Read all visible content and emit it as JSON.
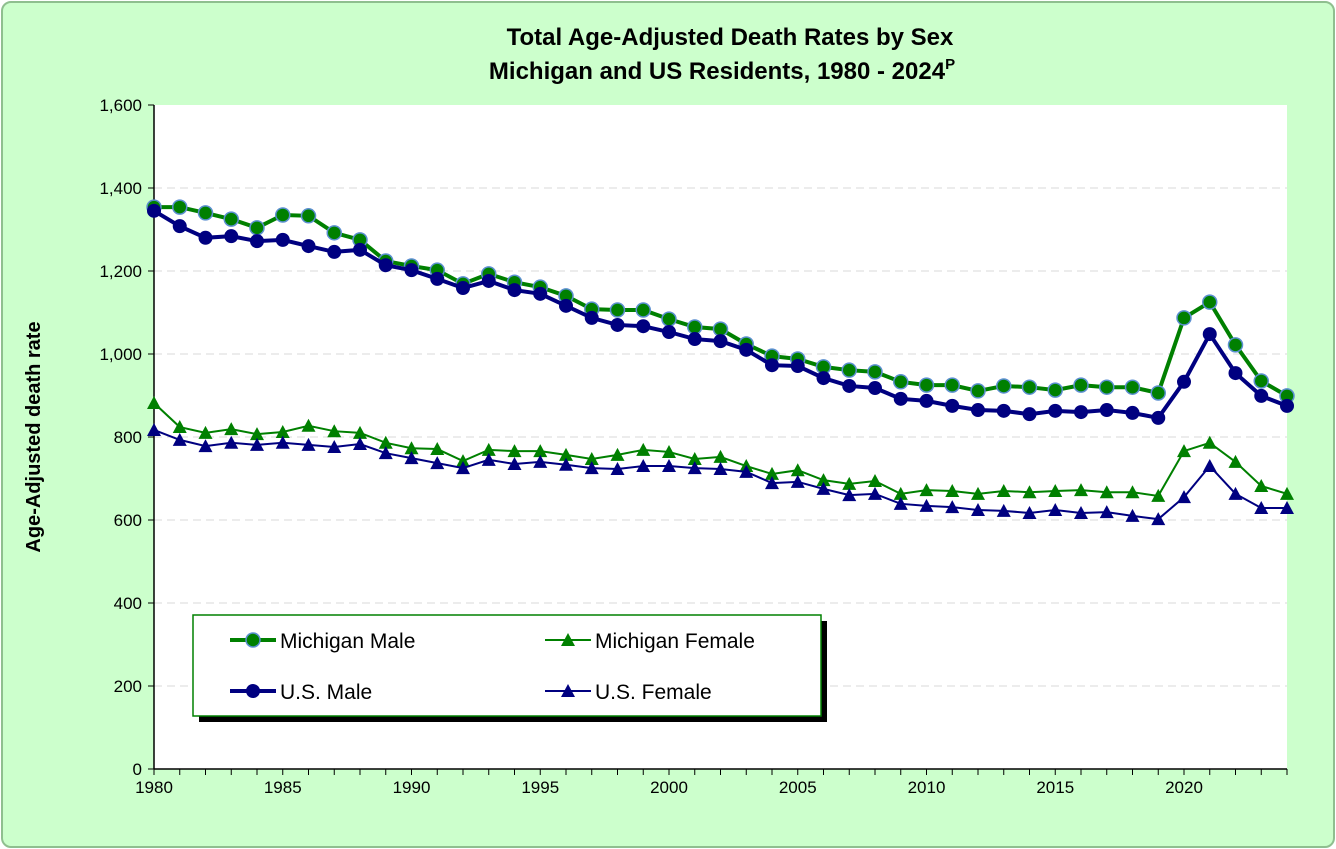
{
  "chart_data": {
    "type": "line",
    "title_line1": "Total Age-Adjusted Death Rates by Sex",
    "title_line2": "Michigan and US Residents, 1980 - 2024",
    "title_superscript": "P",
    "xlabel": "",
    "ylabel": "Age-Adjusted death rate",
    "xlim": [
      1980,
      2024
    ],
    "ylim": [
      0,
      1600
    ],
    "yticks": [
      "0",
      "200",
      "400",
      "600",
      "800",
      "1,000",
      "1,200",
      "1,400",
      "1,600"
    ],
    "xticks": [
      "1980",
      "1985",
      "1990",
      "1995",
      "2000",
      "2005",
      "2010",
      "2015",
      "2020"
    ],
    "grid": true,
    "legend_placement": "bottom-left",
    "x": [
      1980,
      1981,
      1982,
      1983,
      1984,
      1985,
      1986,
      1987,
      1988,
      1989,
      1990,
      1991,
      1992,
      1993,
      1994,
      1995,
      1996,
      1997,
      1998,
      1999,
      2000,
      2001,
      2002,
      2003,
      2004,
      2005,
      2006,
      2007,
      2008,
      2009,
      2010,
      2011,
      2012,
      2013,
      2014,
      2015,
      2016,
      2017,
      2018,
      2019,
      2020,
      2021,
      2022,
      2023,
      2024
    ],
    "series": [
      {
        "name": "Michigan Male",
        "color": "#008000",
        "marker": "circle",
        "values": [
          1354,
          1354,
          1340,
          1325,
          1304,
          1335,
          1333,
          1292,
          1275,
          1224,
          1212,
          1202,
          1169,
          1193,
          1173,
          1161,
          1140,
          1108,
          1106,
          1106,
          1084,
          1065,
          1060,
          1024,
          995,
          988,
          969,
          961,
          957,
          933,
          925,
          925,
          911,
          923,
          920,
          913,
          925,
          920,
          920,
          906,
          1087,
          1125,
          1022,
          935,
          899
        ]
      },
      {
        "name": "Michigan Female",
        "color": "#008000",
        "marker": "triangle",
        "values": [
          882,
          824,
          810,
          819,
          807,
          812,
          827,
          814,
          810,
          786,
          773,
          771,
          742,
          769,
          766,
          766,
          757,
          747,
          757,
          769,
          764,
          747,
          752,
          730,
          711,
          720,
          696,
          687,
          694,
          663,
          672,
          670,
          663,
          670,
          667,
          670,
          672,
          667,
          667,
          658,
          766,
          786,
          740,
          682,
          663
        ]
      },
      {
        "name": "U.S. Male",
        "color": "#000080",
        "marker": "circle",
        "values": [
          1345,
          1308,
          1280,
          1284,
          1272,
          1275,
          1260,
          1246,
          1251,
          1214,
          1202,
          1181,
          1159,
          1176,
          1154,
          1145,
          1116,
          1087,
          1070,
          1067,
          1053,
          1036,
          1031,
          1010,
          973,
          971,
          942,
          923,
          918,
          892,
          887,
          875,
          865,
          863,
          855,
          863,
          860,
          865,
          858,
          846,
          933,
          1048,
          954,
          899,
          875
        ]
      },
      {
        "name": "U.S. Female",
        "color": "#000080",
        "marker": "triangle",
        "values": [
          817,
          793,
          778,
          786,
          781,
          786,
          781,
          776,
          783,
          761,
          749,
          737,
          725,
          745,
          735,
          740,
          733,
          725,
          723,
          730,
          730,
          725,
          723,
          716,
          689,
          692,
          675,
          660,
          663,
          639,
          634,
          631,
          624,
          622,
          617,
          624,
          617,
          619,
          610,
          602,
          655,
          730,
          663,
          629,
          629
        ]
      }
    ]
  }
}
